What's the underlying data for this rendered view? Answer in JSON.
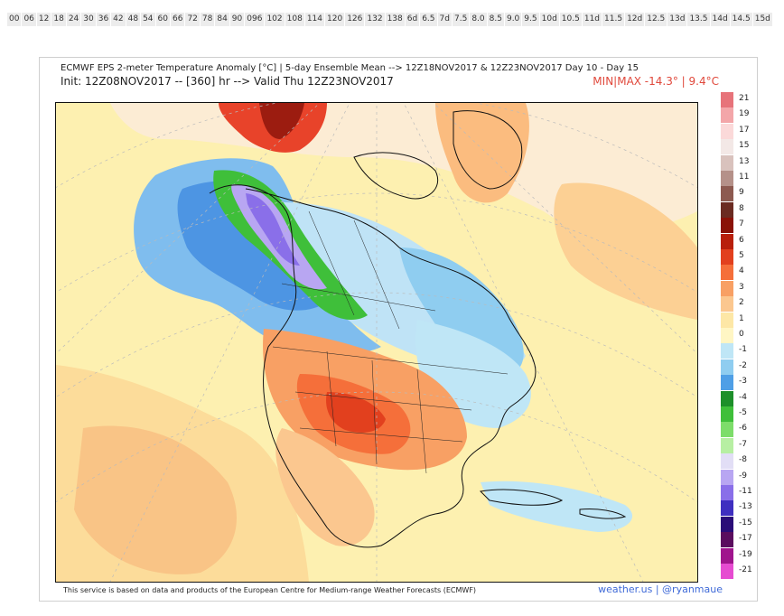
{
  "hour_selector": [
    "00",
    "06",
    "12",
    "18",
    "24",
    "30",
    "36",
    "42",
    "48",
    "54",
    "60",
    "66",
    "72",
    "78",
    "84",
    "90",
    "096",
    "102",
    "108",
    "114",
    "120",
    "126",
    "132",
    "138",
    "6d",
    "6.5",
    "7d",
    "7.5",
    "8.0",
    "8.5",
    "9.0",
    "9.5",
    "10d",
    "10.5",
    "11d",
    "11.5",
    "12d",
    "12.5",
    "13d",
    "13.5",
    "14d",
    "14.5",
    "15d"
  ],
  "figure": {
    "title": "ECMWF EPS 2-meter Temperature Anomaly [°C] | 5-day Ensemble Mean --> 12Z18NOV2017 & 12Z23NOV2017  Day 10 - Day 15",
    "init": "Init: 12Z08NOV2017 -- [360] hr --> Valid Thu 12Z23NOV2017",
    "minmax": "MIN|MAX -14.3° | 9.4°C"
  },
  "colorbar": {
    "labels": [
      "21",
      "19",
      "17",
      "15",
      "13",
      "11",
      "9",
      "8",
      "7",
      "6",
      "5",
      "4",
      "3",
      "2",
      "1",
      "0",
      "-1",
      "-2",
      "-3",
      "-4",
      "-5",
      "-6",
      "-7",
      "-8",
      "-9",
      "-11",
      "-13",
      "-15",
      "-17",
      "-19",
      "-21"
    ],
    "colors": [
      "#e7737a",
      "#f3a6a9",
      "#fbd9d9",
      "#f3e8e6",
      "#d9c2bd",
      "#b59189",
      "#8d5a50",
      "#6b2b21",
      "#8a1207",
      "#b81f0c",
      "#e2401e",
      "#f56f3a",
      "#f8a064",
      "#fbc78f",
      "#fde7a6",
      "#fff6c4",
      "#bfe6f6",
      "#8fcdf0",
      "#4f9fe6",
      "#1d8f2a",
      "#3fbf3a",
      "#7ddd6a",
      "#b7efa3",
      "#e2def6",
      "#b8a6f2",
      "#8a6fe9",
      "#3f2fc0",
      "#2a0d78",
      "#5a0d5e",
      "#a0158d",
      "#e64bd1"
    ]
  },
  "footer": {
    "note": "This service is based on data and products of the European Centre for Medium-range Weather Forecasts (ECMWF)",
    "credit": "weather.us | @ryanmaue"
  }
}
